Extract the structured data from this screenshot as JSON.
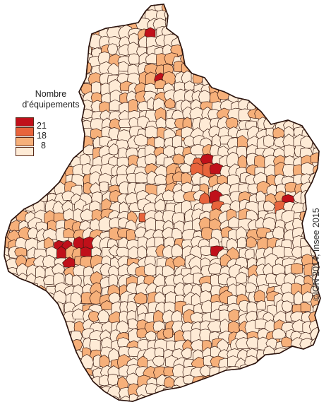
{
  "legend": {
    "title_line1": "Nombre",
    "title_line2": "d’équipements",
    "classes": [
      {
        "label": "21",
        "color": "#c0101a"
      },
      {
        "label": "18",
        "color": "#e8643c"
      },
      {
        "label": "8",
        "color": "#f6b07a"
      },
      {
        "label": "",
        "color": "#feebd6"
      }
    ]
  },
  "credit": "©IGN 2014, Insee 2015",
  "colors": {
    "border": "#3a1a12",
    "background": "#ffffff"
  }
}
